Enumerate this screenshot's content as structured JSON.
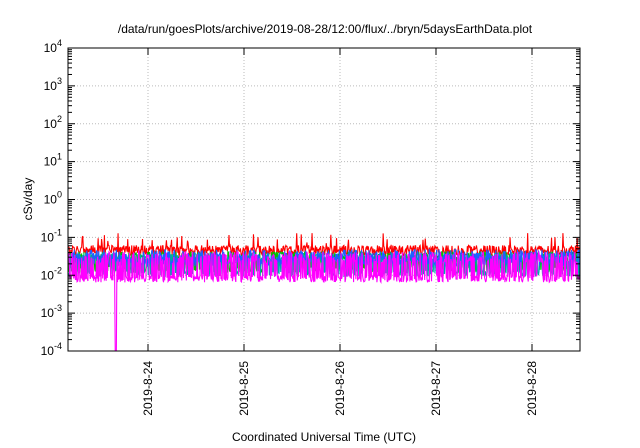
{
  "chart_data": {
    "type": "line",
    "title": "/data/run/goesPlots/archive/2019-08-28/12:00/flux/../bryn/5daysEarthData.plot",
    "xlabel": "Coordinated Universal Time (UTC)",
    "ylabel": "cSv/day",
    "yscale": "log",
    "ylim": [
      0.0001,
      10000
    ],
    "xlim": [
      "2019-08-23 04:00",
      "2019-08-28 12:00"
    ],
    "grid": true,
    "y_ticks": [
      {
        "base": "10",
        "exp": "-4"
      },
      {
        "base": "10",
        "exp": "-3"
      },
      {
        "base": "10",
        "exp": "-2"
      },
      {
        "base": "10",
        "exp": "-1"
      },
      {
        "base": "10",
        "exp": "0"
      },
      {
        "base": "10",
        "exp": "1"
      },
      {
        "base": "10",
        "exp": "2"
      },
      {
        "base": "10",
        "exp": "3"
      },
      {
        "base": "10",
        "exp": "4"
      }
    ],
    "x_ticks": [
      "2019-8-24",
      "2019-8-25",
      "2019-8-26",
      "2019-8-27",
      "2019-8-28"
    ],
    "series": [
      {
        "color": "#ff0000",
        "level": 0.045,
        "spread": 0.28,
        "dip_rate": 0.0,
        "spike_max": 0.13
      },
      {
        "color": "#00c000",
        "level": 0.033,
        "spread": 0.22,
        "dip_rate": 0.35,
        "dip_to": 0.014
      },
      {
        "color": "#00a8a8",
        "level": 0.03,
        "spread": 0.22,
        "dip_rate": 0.35,
        "dip_to": 0.011
      },
      {
        "color": "#1f5fff",
        "level": 0.032,
        "spread": 0.35,
        "dip_rate": 0.35,
        "dip_to": 0.02
      },
      {
        "color": "#ff00ff",
        "level": 0.008,
        "spread": 0.18,
        "jump_rate": 0.45,
        "jump_to": 0.03,
        "gap_at": "2019-08-23 16:00",
        "gap_to": 0.0001
      }
    ]
  }
}
